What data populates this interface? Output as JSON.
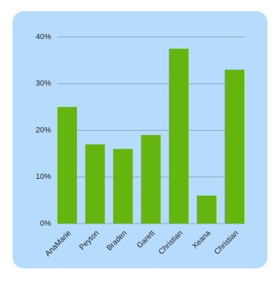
{
  "chart_data": {
    "type": "bar",
    "categories": [
      "AnaMarie",
      "Peyton",
      "Braden",
      "Garett",
      "Christian",
      "Xeana",
      "Christian"
    ],
    "values": [
      25,
      17,
      16,
      19,
      37.5,
      6,
      33
    ],
    "color": "#64b60f",
    "ylim": [
      0,
      40
    ],
    "yticks": [
      {
        "value": 0,
        "label": "0%"
      },
      {
        "value": 10,
        "label": "10%"
      },
      {
        "value": 20,
        "label": "20%"
      },
      {
        "value": 30,
        "label": "30%"
      },
      {
        "value": 40,
        "label": "40%"
      }
    ],
    "grid": true
  }
}
